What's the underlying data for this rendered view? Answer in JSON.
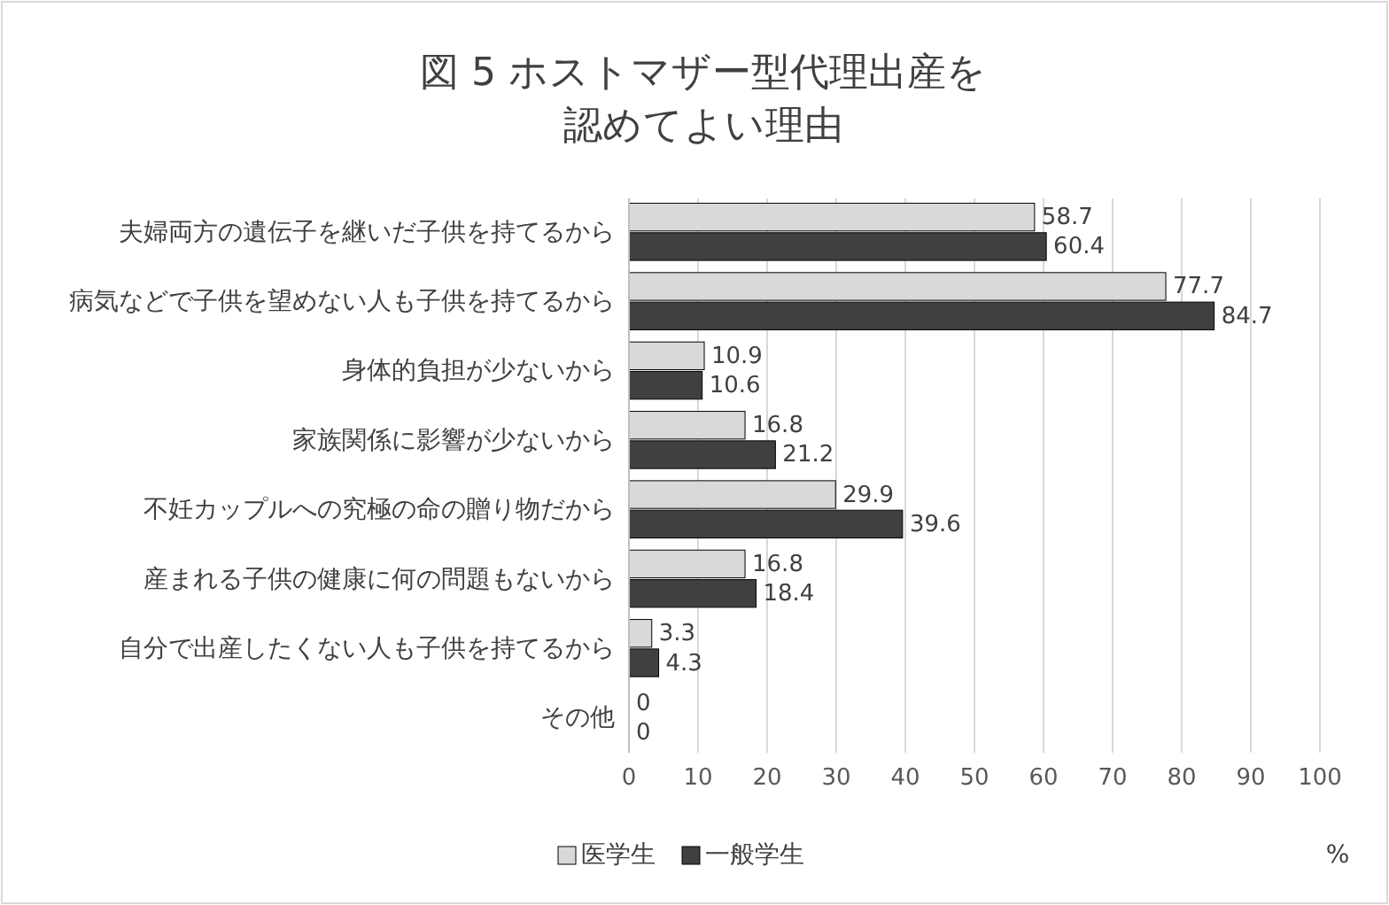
{
  "chart_data": {
    "type": "bar",
    "orientation": "horizontal",
    "title": "図 5 ホストマザー型代理出産を認めてよい理由",
    "categories": [
      "夫婦両方の遺伝子を継いだ子供を持てるから",
      "病気などで子供を望めない人も子供を持てるから",
      "身体的負担が少ないから",
      "家族関係に影響が少ないから",
      "不妊カップルへの究極の命の贈り物だから",
      "産まれる子供の健康に何の問題もないから",
      "自分で出産したくない人も子供を持てるから",
      "その他"
    ],
    "series": [
      {
        "name": "医学生",
        "color": "#d9d9d9",
        "values": [
          58.7,
          77.7,
          10.9,
          16.8,
          29.9,
          16.8,
          3.3,
          0
        ]
      },
      {
        "name": "一般学生",
        "color": "#404040",
        "values": [
          60.4,
          84.7,
          10.6,
          21.2,
          39.6,
          18.4,
          4.3,
          0
        ]
      }
    ],
    "xlim": [
      0,
      100
    ],
    "xticks": [
      0,
      10,
      20,
      30,
      40,
      50,
      60,
      70,
      80,
      90,
      100
    ],
    "xlabel": "%",
    "grid": "x",
    "legend": "bottom",
    "data_labels": true
  }
}
